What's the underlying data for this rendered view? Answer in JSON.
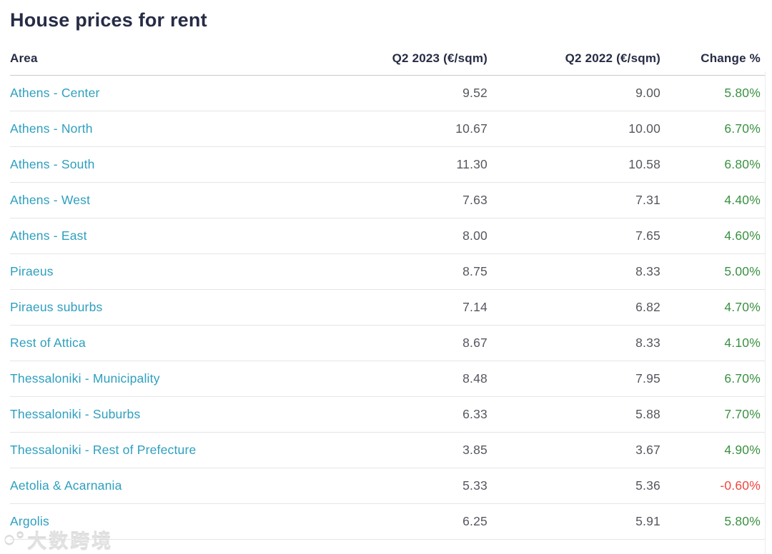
{
  "page": {
    "title": "House prices for rent"
  },
  "table": {
    "headers": [
      "Area",
      "Q2 2023 (€/sqm)",
      "Q2 2022 (€/sqm)",
      "Change %"
    ],
    "rows": [
      {
        "area": "Athens - Center",
        "q2_2023": "9.52",
        "q2_2022": "9.00",
        "change": "5.80%"
      },
      {
        "area": "Athens - North",
        "q2_2023": "10.67",
        "q2_2022": "10.00",
        "change": "6.70%"
      },
      {
        "area": "Athens - South",
        "q2_2023": "11.30",
        "q2_2022": "10.58",
        "change": "6.80%"
      },
      {
        "area": "Athens - West",
        "q2_2023": "7.63",
        "q2_2022": "7.31",
        "change": "4.40%"
      },
      {
        "area": "Athens - East",
        "q2_2023": "8.00",
        "q2_2022": "7.65",
        "change": "4.60%"
      },
      {
        "area": "Piraeus",
        "q2_2023": "8.75",
        "q2_2022": "8.33",
        "change": "5.00%"
      },
      {
        "area": "Piraeus suburbs",
        "q2_2023": "7.14",
        "q2_2022": "6.82",
        "change": "4.70%"
      },
      {
        "area": "Rest of Attica",
        "q2_2023": "8.67",
        "q2_2022": "8.33",
        "change": "4.10%"
      },
      {
        "area": "Thessaloniki - Municipality",
        "q2_2023": "8.48",
        "q2_2022": "7.95",
        "change": "6.70%"
      },
      {
        "area": "Thessaloniki - Suburbs",
        "q2_2023": "6.33",
        "q2_2022": "5.88",
        "change": "7.70%"
      },
      {
        "area": "Thessaloniki - Rest of Prefecture",
        "q2_2023": "3.85",
        "q2_2022": "3.67",
        "change": "4.90%"
      },
      {
        "area": "Aetolia & Acarnania",
        "q2_2023": "5.33",
        "q2_2022": "5.36",
        "change": "-0.60%"
      },
      {
        "area": "Argolis",
        "q2_2023": "6.25",
        "q2_2022": "5.91",
        "change": "5.80%"
      }
    ]
  },
  "watermark": {
    "logo": "○°",
    "text": "大数跨境"
  },
  "colors": {
    "accent_teal": "#2d9fbf",
    "positive_green": "#3a9142",
    "negative_red": "#f2453f",
    "heading_dark": "#272c45",
    "number_gray": "#55575e"
  }
}
